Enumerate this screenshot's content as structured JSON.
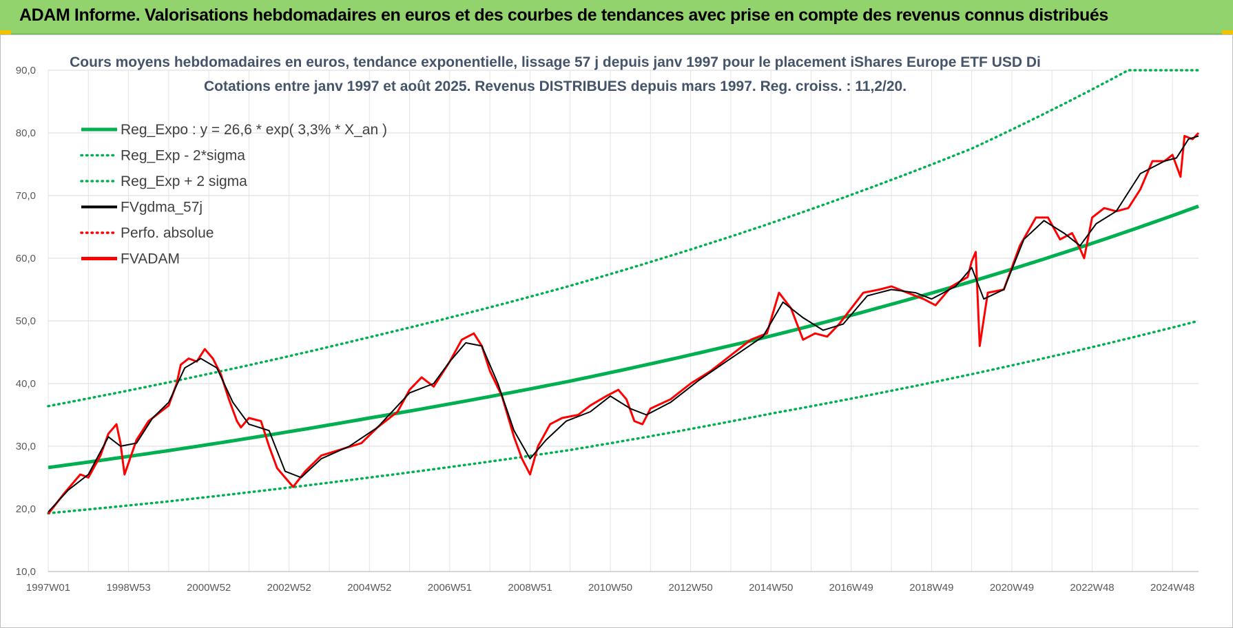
{
  "banner": {
    "title": "ADAM Informe. Valorisations hebdomadaires en euros et des courbes de tendances avec prise en compte des revenus connus distribués"
  },
  "colors": {
    "banner_bg": "#92d36e",
    "trend": "#00b050",
    "price": "#ff0000",
    "average": "#000000"
  },
  "chart_data": {
    "type": "line",
    "title": "Cours moyens hebdomadaires en euros, tendance exponentielle, lissage 57 j depuis janv 1997  pour le placement iShares Europe ETF USD Di",
    "subtitle": "Cotations entre janv 1997 et août 2025.  Revenus DISTRIBUES depuis mars 1997. Reg. croiss. : 11,2/20.",
    "xlabel": "",
    "ylabel": "",
    "ylim": [
      10,
      90
    ],
    "yticks": [
      "10,0",
      "20,0",
      "30,0",
      "40,0",
      "50,0",
      "60,0",
      "70,0",
      "80,0",
      "90,0"
    ],
    "xticks": [
      "1997W01",
      "1998W53",
      "2000W52",
      "2002W52",
      "2004W52",
      "2006W51",
      "2008W51",
      "2010W50",
      "2012W50",
      "2014W50",
      "2016W49",
      "2018W49",
      "2020W49",
      "2022W48",
      "2024W48"
    ],
    "xrange": [
      1997.0,
      2025.65
    ],
    "grid": true,
    "legend_position": "top-left",
    "legend": [
      {
        "label": "Reg_Expo : y = 26,6 * exp( 3,3% *  X_an )",
        "style": "solid-thick",
        "color": "#00b050"
      },
      {
        "label": "Reg_Exp - 2*sigma",
        "style": "dotted",
        "color": "#00b050"
      },
      {
        "label": "Reg_Exp + 2 sigma",
        "style": "dotted",
        "color": "#00b050"
      },
      {
        "label": "FVgdma_57j",
        "style": "solid",
        "color": "#000000"
      },
      {
        "label": "Perfo. absolue",
        "style": "dotted",
        "color": "#ff0000"
      },
      {
        "label": "FVADAM",
        "style": "solid-thick",
        "color": "#ff0000"
      }
    ],
    "series": [
      {
        "name": "Reg_Expo",
        "x": [
          1997.0,
          2000.0,
          2005.0,
          2010.0,
          2015.0,
          2020.0,
          2025.65
        ],
        "values": [
          26.6,
          29.3,
          34.5,
          40.4,
          47.6,
          56.3,
          68.3
        ]
      },
      {
        "name": "Reg_Exp - 2*sigma",
        "x": [
          1997.0,
          2000.0,
          2005.0,
          2010.0,
          2015.0,
          2020.0,
          2025.65
        ],
        "values": [
          19.3,
          21.2,
          25.0,
          29.4,
          35.2,
          41.5,
          50.0
        ]
      },
      {
        "name": "Reg_Exp + 2 sigma",
        "x": [
          1997.0,
          2000.0,
          2005.0,
          2010.0,
          2015.0,
          2020.0,
          2023.9,
          2025.65
        ],
        "values": [
          36.4,
          40.2,
          47.4,
          55.6,
          65.6,
          77.5,
          90.0,
          90.0
        ]
      },
      {
        "name": "FVADAM",
        "x": [
          1997.0,
          1997.4,
          1997.8,
          1998.0,
          1998.3,
          1998.5,
          1998.7,
          1998.8,
          1998.9,
          1999.2,
          1999.5,
          1999.8,
          2000.0,
          2000.2,
          2000.3,
          2000.5,
          2000.7,
          2000.9,
          2001.1,
          2001.3,
          2001.5,
          2001.7,
          2001.8,
          2002.0,
          2002.3,
          2002.5,
          2002.7,
          2002.9,
          2003.1,
          2003.4,
          2003.8,
          2004.3,
          2004.8,
          2005.2,
          2005.7,
          2006.0,
          2006.3,
          2006.6,
          2007.0,
          2007.3,
          2007.6,
          2007.8,
          2008.0,
          2008.3,
          2008.6,
          2008.8,
          2009.0,
          2009.2,
          2009.5,
          2009.8,
          2010.2,
          2010.5,
          2010.9,
          2011.2,
          2011.4,
          2011.6,
          2011.8,
          2012.0,
          2012.5,
          2013.0,
          2013.5,
          2014.0,
          2014.5,
          2014.9,
          2015.2,
          2015.5,
          2015.8,
          2016.1,
          2016.4,
          2016.7,
          2017.0,
          2017.3,
          2017.7,
          2018.0,
          2018.4,
          2018.8,
          2019.1,
          2019.5,
          2019.9,
          2020.0,
          2020.1,
          2020.2,
          2020.4,
          2020.8,
          2021.2,
          2021.6,
          2021.9,
          2022.2,
          2022.5,
          2022.7,
          2022.8,
          2023.0,
          2023.3,
          2023.6,
          2023.9,
          2024.2,
          2024.5,
          2024.8,
          2025.0,
          2025.2,
          2025.3,
          2025.5,
          2025.65
        ],
        "values": [
          19.2,
          22.5,
          25.5,
          25.0,
          28.5,
          32.0,
          33.5,
          30.5,
          25.5,
          31.0,
          34.0,
          35.5,
          36.5,
          40.0,
          43.0,
          44.0,
          43.5,
          45.5,
          44.0,
          41.5,
          37.5,
          34.0,
          33.0,
          34.5,
          34.0,
          30.0,
          26.5,
          25.0,
          23.5,
          26.0,
          28.5,
          29.5,
          30.5,
          33.0,
          35.5,
          39.0,
          41.0,
          39.5,
          43.5,
          47.0,
          48.0,
          46.0,
          42.0,
          38.0,
          31.5,
          28.0,
          25.5,
          30.0,
          33.5,
          34.5,
          35.0,
          36.5,
          38.0,
          39.0,
          37.5,
          34.0,
          33.5,
          36.0,
          37.5,
          40.0,
          42.0,
          44.5,
          47.0,
          48.0,
          54.5,
          52.0,
          47.0,
          48.0,
          47.5,
          49.5,
          52.0,
          54.5,
          55.0,
          55.5,
          54.5,
          53.5,
          52.5,
          55.5,
          57.0,
          59.5,
          61.0,
          46.0,
          54.5,
          55.0,
          62.0,
          66.5,
          66.5,
          63.0,
          64.0,
          61.5,
          60.0,
          66.5,
          68.0,
          67.5,
          68.0,
          71.0,
          75.5,
          75.5,
          76.5,
          73.0,
          79.5,
          79.0,
          80.0
        ]
      },
      {
        "name": "FVgdma_57j",
        "x": [
          1997.0,
          1997.5,
          1998.0,
          1998.5,
          1998.8,
          1999.2,
          1999.6,
          2000.0,
          2000.4,
          2000.8,
          2001.2,
          2001.6,
          2002.0,
          2002.5,
          2002.9,
          2003.3,
          2003.8,
          2004.5,
          2005.2,
          2006.0,
          2006.6,
          2007.0,
          2007.4,
          2007.8,
          2008.2,
          2008.6,
          2009.0,
          2009.4,
          2009.9,
          2010.5,
          2011.0,
          2011.5,
          2011.9,
          2012.5,
          2013.2,
          2014.0,
          2014.8,
          2015.3,
          2015.8,
          2016.3,
          2016.8,
          2017.4,
          2018.0,
          2018.6,
          2019.0,
          2019.6,
          2020.0,
          2020.3,
          2020.8,
          2021.3,
          2021.8,
          2022.3,
          2022.7,
          2023.1,
          2023.6,
          2024.2,
          2024.8,
          2025.1,
          2025.4,
          2025.65
        ],
        "values": [
          19.5,
          23.0,
          25.5,
          31.5,
          30.0,
          30.5,
          34.5,
          37.0,
          42.5,
          44.0,
          42.5,
          37.0,
          33.5,
          32.5,
          26.0,
          25.0,
          28.0,
          30.0,
          33.0,
          38.5,
          40.0,
          43.5,
          46.5,
          46.0,
          40.0,
          32.5,
          28.0,
          31.0,
          34.0,
          35.5,
          38.0,
          36.0,
          35.0,
          37.0,
          40.5,
          44.0,
          47.5,
          53.0,
          50.5,
          48.5,
          49.5,
          54.0,
          55.0,
          54.5,
          53.5,
          55.5,
          58.5,
          53.5,
          55.0,
          63.0,
          66.0,
          64.0,
          62.0,
          65.5,
          67.5,
          73.5,
          75.5,
          76.0,
          79.0,
          79.5
        ]
      }
    ]
  }
}
